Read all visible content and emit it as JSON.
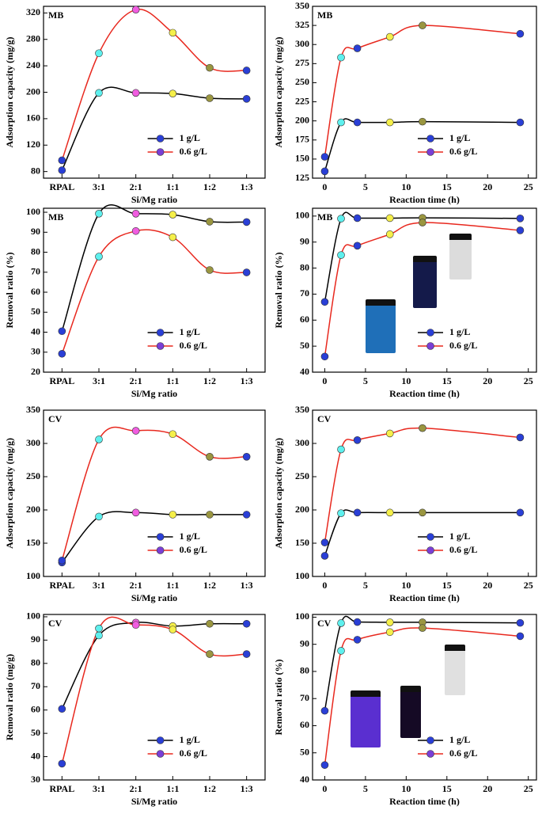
{
  "chart_data": [
    {
      "type": "line",
      "title": "MB",
      "y_label": "Adsorption capacity (mg/g)",
      "x_label": "Si/Mg  ratio",
      "categories": [
        "RPAL",
        "3:1",
        "2:1",
        "1:1",
        "1:2",
        "1:3"
      ],
      "marker_colors": [
        "#2a3fd6",
        "#5ef0ee",
        "#f05ce0",
        "#f5ef4a",
        "#9a9640",
        "#2a3fd6"
      ],
      "ylim": [
        70,
        330
      ],
      "yticks": [
        80,
        120,
        160,
        200,
        240,
        280,
        320
      ],
      "legend": "lower right",
      "series": [
        {
          "name": "1 g/L",
          "color": "#000000",
          "values": [
            82,
            199,
            199,
            198,
            191,
            190
          ]
        },
        {
          "name": "0.6 g/L",
          "color": "#e8281e",
          "values": [
            97,
            259,
            325,
            290,
            237,
            233
          ]
        }
      ]
    },
    {
      "type": "line",
      "title": "MB",
      "y_label": "Adsorption capacity (mg/g)",
      "x_label": "Reaction time (h)",
      "x": [
        0,
        2,
        4,
        8,
        12,
        24
      ],
      "marker_colors": [
        "#2a3fd6",
        "#5ef0ee",
        "#2a3fd6",
        "#f5ef4a",
        "#9a9640",
        "#2a3fd6"
      ],
      "xlim": [
        -1.5,
        26
      ],
      "xticks": [
        0,
        5,
        10,
        15,
        20,
        25
      ],
      "ylim": [
        125,
        350
      ],
      "yticks": [
        125,
        150,
        175,
        200,
        225,
        250,
        275,
        300,
        325,
        350
      ],
      "legend": "lower right",
      "series": [
        {
          "name": "1 g/L",
          "color": "#000000",
          "values": [
            134,
            198,
            198,
            198,
            199,
            198
          ]
        },
        {
          "name": "0.6 g/L",
          "color": "#e8281e",
          "values": [
            153,
            283,
            295,
            310,
            325,
            314
          ]
        }
      ]
    },
    {
      "type": "line",
      "title": "MB",
      "y_label": "Removal ratio (%)",
      "x_label": "Si/Mg  ratio",
      "categories": [
        "RPAL",
        "3:1",
        "2:1",
        "1:1",
        "1:2",
        "1:3"
      ],
      "marker_colors": [
        "#2a3fd6",
        "#5ef0ee",
        "#f05ce0",
        "#f5ef4a",
        "#9a9640",
        "#2a3fd6"
      ],
      "ylim": [
        20,
        102
      ],
      "yticks": [
        20,
        30,
        40,
        50,
        60,
        70,
        80,
        90,
        100
      ],
      "legend": "lower right",
      "series": [
        {
          "name": "1 g/L",
          "color": "#000000",
          "values": [
            40.5,
            99.3,
            99.3,
            98.8,
            95.3,
            95.1
          ]
        },
        {
          "name": "0.6 g/L",
          "color": "#e8281e",
          "values": [
            29.2,
            77.8,
            90.6,
            87.5,
            71.1,
            69.9
          ]
        }
      ]
    },
    {
      "type": "line",
      "title": "MB",
      "y_label": "Removal ratio (%)",
      "x_label": "Reaction time (h)",
      "x": [
        0,
        2,
        4,
        8,
        12,
        24
      ],
      "marker_colors": [
        "#2a3fd6",
        "#5ef0ee",
        "#2a3fd6",
        "#f5ef4a",
        "#9a9640",
        "#2a3fd6"
      ],
      "xlim": [
        -1.5,
        26
      ],
      "xticks": [
        0,
        5,
        10,
        15,
        20,
        25
      ],
      "ylim": [
        40,
        103
      ],
      "yticks": [
        40,
        50,
        60,
        70,
        80,
        90,
        100
      ],
      "legend": "lower right",
      "series": [
        {
          "name": "1 g/L",
          "color": "#000000",
          "values": [
            67,
            99,
            99.2,
            99.2,
            99.3,
            99.1
          ]
        },
        {
          "name": "0.6 g/L",
          "color": "#e8281e",
          "values": [
            46,
            85,
            88.6,
            93,
            97.5,
            94.5
          ]
        }
      ]
    },
    {
      "type": "line",
      "title": "CV",
      "y_label": "Adsorption capacity (mg/g)",
      "x_label": "Si/Mg  ratio",
      "categories": [
        "RPAL",
        "3:1",
        "2:1",
        "1:1",
        "1:2",
        "1:3"
      ],
      "marker_colors": [
        "#2a3fd6",
        "#5ef0ee",
        "#f05ce0",
        "#f5ef4a",
        "#9a9640",
        "#2a3fd6"
      ],
      "ylim": [
        100,
        350
      ],
      "yticks": [
        100,
        150,
        200,
        250,
        300,
        350
      ],
      "legend": "lower right",
      "series": [
        {
          "name": "1 g/L",
          "color": "#000000",
          "values": [
            121,
            190,
            196,
            193,
            193,
            193
          ]
        },
        {
          "name": "0.6 g/L",
          "color": "#e8281e",
          "values": [
            124,
            306,
            319,
            314,
            280,
            280
          ]
        }
      ]
    },
    {
      "type": "line",
      "title": "CV",
      "y_label": "Adsorption capacity (mg/g)",
      "x_label": "Reaction time (h)",
      "x": [
        0,
        2,
        4,
        8,
        12,
        24
      ],
      "marker_colors": [
        "#2a3fd6",
        "#5ef0ee",
        "#2a3fd6",
        "#f5ef4a",
        "#9a9640",
        "#2a3fd6"
      ],
      "xlim": [
        -1.5,
        26
      ],
      "xticks": [
        0,
        5,
        10,
        15,
        20,
        25
      ],
      "ylim": [
        100,
        350
      ],
      "yticks": [
        100,
        150,
        200,
        250,
        300,
        350
      ],
      "legend": "lower right",
      "series": [
        {
          "name": "1 g/L",
          "color": "#000000",
          "values": [
            131,
            195,
            196,
            196,
            196,
            196
          ]
        },
        {
          "name": "0.6 g/L",
          "color": "#e8281e",
          "values": [
            151,
            291,
            305,
            315,
            323,
            309
          ]
        }
      ]
    },
    {
      "type": "line",
      "title": "CV",
      "y_label": "Removal ratio (mg/g)",
      "x_label": "Si/Mg  ratio",
      "categories": [
        "RPAL",
        "3:1",
        "2:1",
        "1:1",
        "1:2",
        "1:3"
      ],
      "marker_colors": [
        "#2a3fd6",
        "#5ef0ee",
        "#f05ce0",
        "#f5ef4a",
        "#9a9640",
        "#2a3fd6"
      ],
      "ylim": [
        30,
        101
      ],
      "yticks": [
        30,
        40,
        50,
        60,
        70,
        80,
        90,
        100
      ],
      "legend": "lower right",
      "series": [
        {
          "name": "1 g/L",
          "color": "#000000",
          "values": [
            60.5,
            92,
            97.5,
            96,
            97,
            97
          ]
        },
        {
          "name": "0.6 g/L",
          "color": "#e8281e",
          "values": [
            37,
            95,
            96.5,
            94.5,
            84,
            84
          ]
        }
      ]
    },
    {
      "type": "line",
      "title": "CV",
      "y_label": "Removal ratio (%)",
      "x_label": "Reaction time (h)",
      "x": [
        0,
        2,
        4,
        8,
        12,
        24
      ],
      "marker_colors": [
        "#2a3fd6",
        "#5ef0ee",
        "#2a3fd6",
        "#f5ef4a",
        "#9a9640",
        "#2a3fd6"
      ],
      "xlim": [
        -1.5,
        26
      ],
      "xticks": [
        0,
        5,
        10,
        15,
        20,
        25
      ],
      "ylim": [
        40,
        101
      ],
      "yticks": [
        40,
        50,
        60,
        70,
        80,
        90,
        100
      ],
      "legend": "lower right",
      "series": [
        {
          "name": "1 g/L",
          "color": "#000000",
          "values": [
            65.5,
            97.8,
            98.2,
            98.1,
            98.1,
            97.9
          ]
        },
        {
          "name": "0.6 g/L",
          "color": "#e8281e",
          "values": [
            45.5,
            87.6,
            91.7,
            94.5,
            96,
            93
          ]
        }
      ]
    }
  ]
}
